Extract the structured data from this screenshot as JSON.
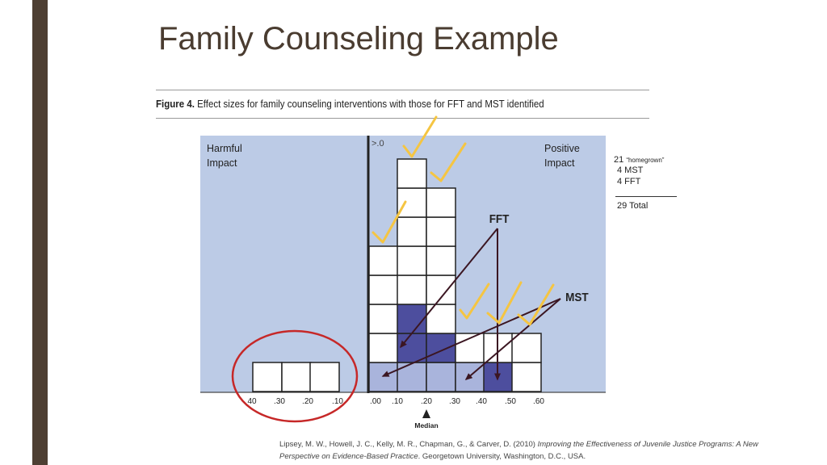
{
  "slide": {
    "title": "Family Counseling Example"
  },
  "figure": {
    "caption_label": "Figure 4.",
    "caption_text": "Effect sizes for family counseling interventions with those for FFT and MST identified",
    "harmful_line1": "Harmful",
    "harmful_line2": "Impact",
    "positive_line1": "Positive",
    "positive_line2": "Impact",
    "zero_label": ">.0",
    "fft_label": "FFT",
    "mst_label": "MST",
    "median_label": "Median",
    "left_ticks": [
      "40",
      ".30",
      ".20",
      ".10"
    ],
    "right_ticks": [
      ".00",
      ".10",
      ".20",
      ".30",
      ".40",
      ".50",
      ".60"
    ]
  },
  "tally": {
    "homegrown_count": "21",
    "homegrown_label": "“homegrown”",
    "mst_line": "4  MST",
    "fft_line": "4  FFT",
    "total_line": "29 Total"
  },
  "citation": {
    "authors": "Lipsey, M. W., Howell, J. C., Kelly, M. R., Chapman, G., & Carver, D. (2010) ",
    "work": "Improving the Effectiveness of Juvenile Justice Programs: A New Perspective on Evidence-Based Practice",
    "publisher": ". Georgetown University, Washington, D.C., USA."
  },
  "colors": {
    "panel_bg": "#bccbe6",
    "mst_cell": "#a9b4dc",
    "fft_cell": "#4d4e9e",
    "checkmark": "#f5c542",
    "arrow": "#3b1622",
    "circle": "#c62828",
    "sidebar": "#4e3f33",
    "title": "#4a3c30"
  }
}
